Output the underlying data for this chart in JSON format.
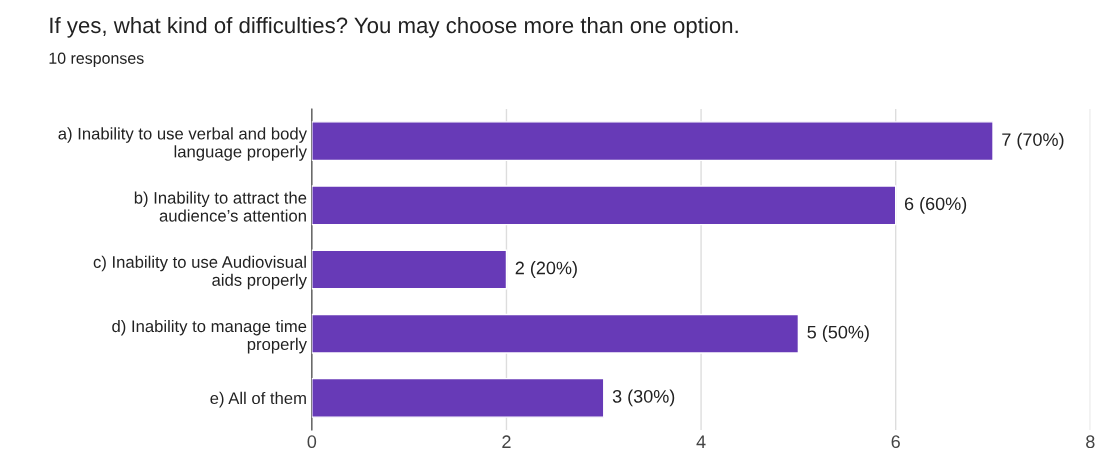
{
  "chart_data": {
    "type": "bar",
    "orientation": "horizontal",
    "title": "If yes, what kind of difficulties? You may choose more than one option.",
    "subtitle": "10 responses",
    "categories": [
      "a) Inability to use verbal and body\nlanguage properly",
      "b) Inability to attract the\naudience’s attention",
      "c) Inability to use Audiovisual\naids properly",
      "d) Inability to manage time\nproperly",
      "e) All of them"
    ],
    "values": [
      7,
      6,
      2,
      5,
      3
    ],
    "value_labels": [
      "7 (70%)",
      "6 (60%)",
      "2 (20%)",
      "5 (50%)",
      "3 (30%)"
    ],
    "color": "#673ab7",
    "xlim": [
      0,
      8
    ],
    "xticks": [
      0,
      2,
      4,
      6,
      8
    ],
    "grid": "x"
  }
}
